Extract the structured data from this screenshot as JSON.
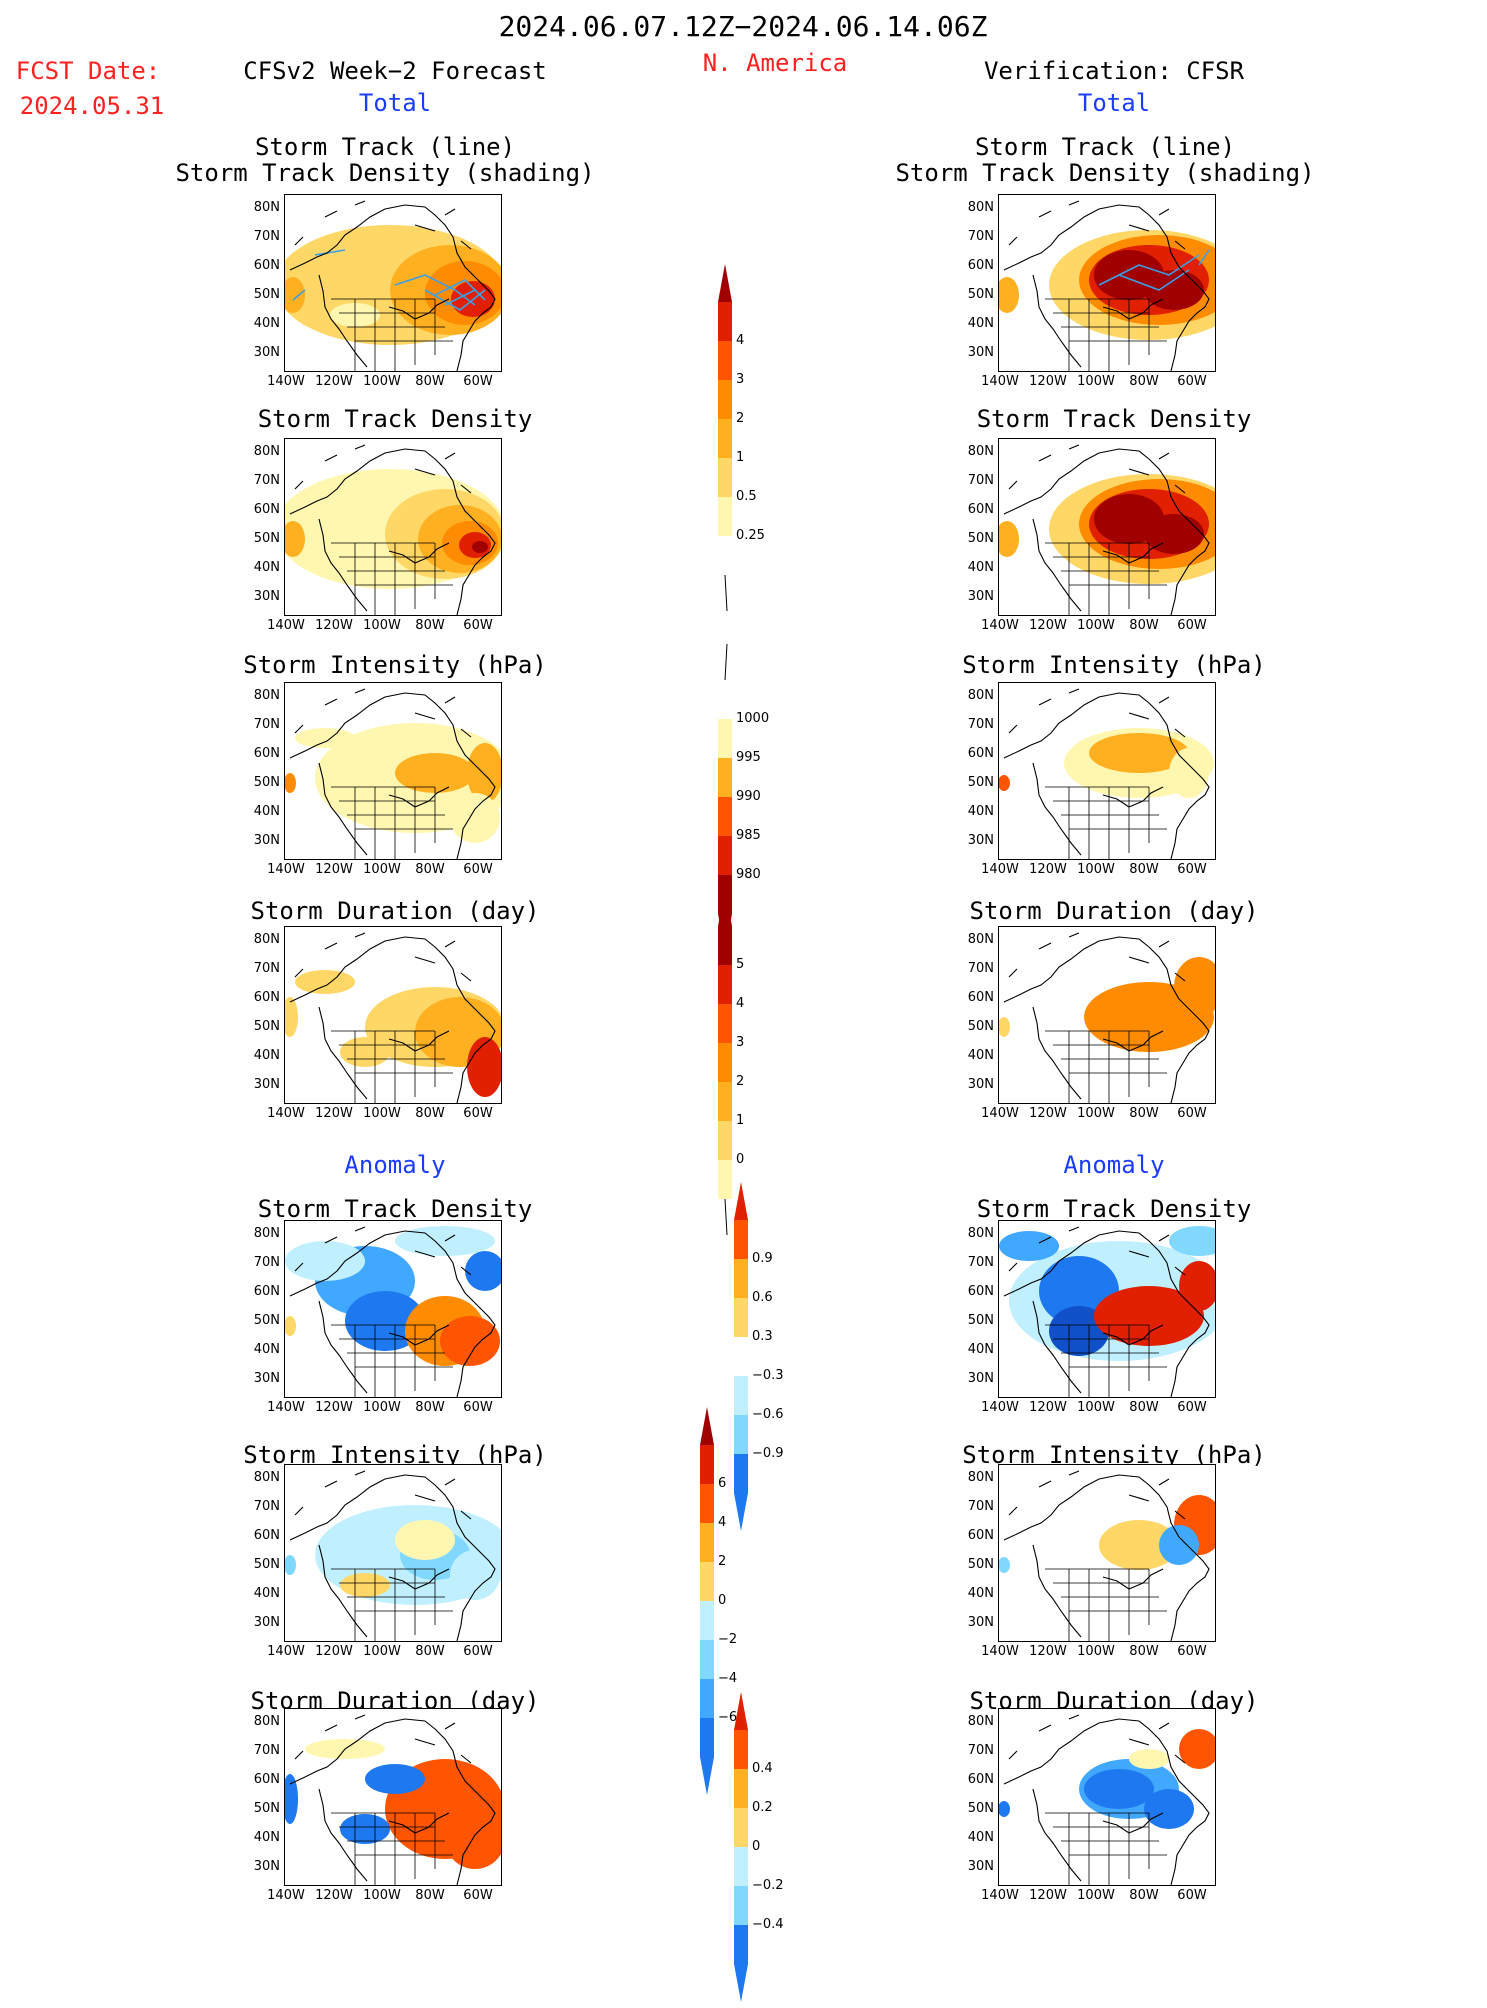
{
  "header": {
    "period": "2024.06.07.12Z−2024.06.14.06Z",
    "fcst_label": "FCST Date:",
    "fcst_date": "2024.05.31",
    "left_title": "CFSv2 Week−2 Forecast",
    "region": "N. America",
    "right_title": "Verification: CFSR",
    "total_label": "Total",
    "anomaly_label": "Anomaly"
  },
  "axes": {
    "lat_ticks": [
      "80N",
      "70N",
      "60N",
      "50N",
      "40N",
      "30N"
    ],
    "lon_ticks": [
      "140W",
      "120W",
      "100W",
      "80W",
      "60W"
    ]
  },
  "panels": {
    "row1_title_a": "Storm Track (line)",
    "row1_title_b": "Storm Track Density (shading)",
    "density": "Storm Track Density",
    "intensity": "Storm Intensity (hPa)",
    "duration": "Storm Duration (day)"
  },
  "colorbars": {
    "density_total": [
      "4",
      "3",
      "2",
      "1",
      "0.5",
      "0.25"
    ],
    "intensity_total": [
      "1000",
      "995",
      "990",
      "985",
      "980"
    ],
    "duration_total": [
      "5",
      "4",
      "3",
      "2",
      "1",
      "0"
    ],
    "density_anom": [
      "0.9",
      "0.6",
      "0.3",
      "−0.3",
      "−0.6",
      "−0.9"
    ],
    "intensity_anom": [
      "6",
      "4",
      "2",
      "0",
      "−2",
      "−4",
      "−6"
    ],
    "duration_anom": [
      "0.4",
      "0.2",
      "0",
      "−0.2",
      "−0.4"
    ]
  },
  "colors": {
    "warm": [
      "#fff7b0",
      "#ffd766",
      "#ffb020",
      "#ff8c00",
      "#ff5500",
      "#e02000",
      "#a00000"
    ],
    "cool": [
      "#c0f0ff",
      "#80d8ff",
      "#40a8ff",
      "#1e78f0",
      "#1050c8"
    ],
    "title_red": "#ff2020",
    "title_blue": "#1a3cff"
  }
}
